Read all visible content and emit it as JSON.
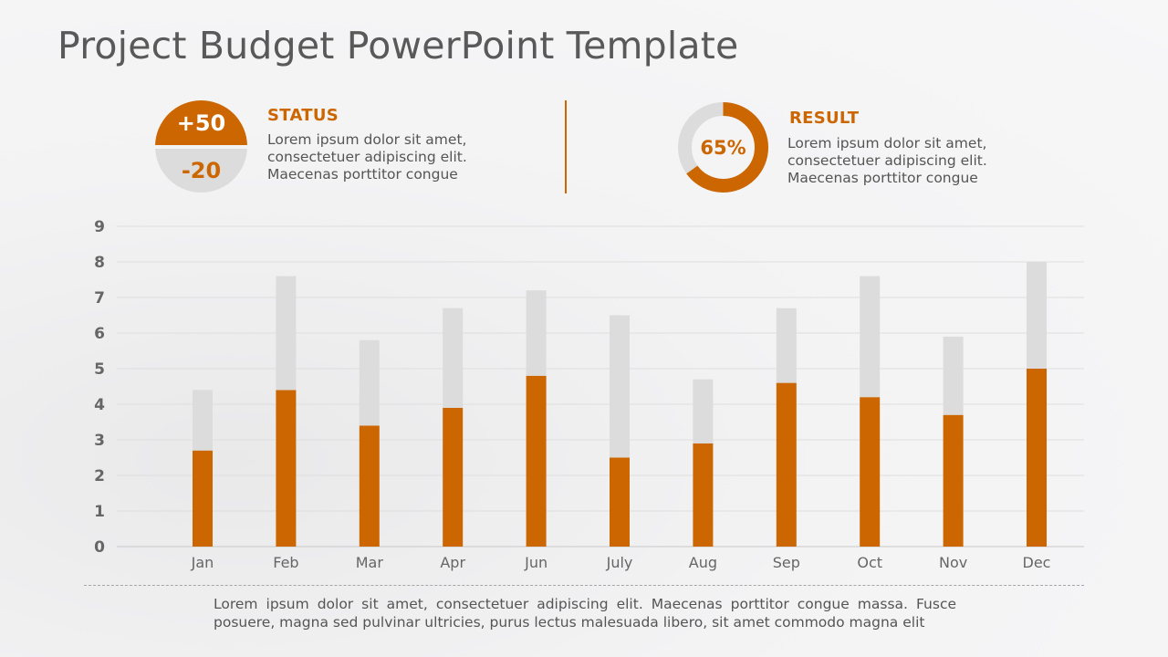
{
  "title": "Project Budget PowerPoint Template",
  "colors": {
    "accent": "#cc6600",
    "secondary": "#dcdcdc",
    "text": "#555555",
    "title": "#595959"
  },
  "status": {
    "heading": "STATUS",
    "plus_value": "+50",
    "minus_value": "-20",
    "description": [
      "Lorem ipsum dolor sit amet,",
      "consectetuer adipiscing elit.",
      "Maecenas porttitor congue"
    ]
  },
  "result": {
    "heading": "RESULT",
    "percent_label": "65%",
    "percent": 0.65,
    "description": [
      "Lorem ipsum dolor sit amet,",
      "consectetuer adipiscing elit.",
      "Maecenas porttitor congue"
    ]
  },
  "chart_data": {
    "type": "bar",
    "stacked": true,
    "categories": [
      "Jan",
      "Feb",
      "Mar",
      "Apr",
      "Jun",
      "July",
      "Aug",
      "Sep",
      "Oct",
      "Nov",
      "Dec"
    ],
    "series": [
      {
        "color": "#cc6600",
        "values": [
          2.7,
          4.4,
          3.4,
          3.9,
          4.8,
          2.5,
          2.9,
          4.6,
          4.2,
          3.7,
          5.0
        ]
      },
      {
        "color": "#dcdcdc",
        "values": [
          1.7,
          3.2,
          2.4,
          2.8,
          2.4,
          4.0,
          1.8,
          2.1,
          3.4,
          2.2,
          3.0
        ]
      }
    ],
    "yticks": [
      0,
      1,
      2,
      3,
      4,
      5,
      6,
      7,
      8,
      9
    ],
    "ylim": [
      0,
      9
    ],
    "grid": true,
    "legend": "none"
  },
  "footer": "Lorem ipsum dolor sit amet, consectetuer adipiscing elit. Maecenas porttitor congue massa. Fusce posuere, magna sed pulvinar ultricies, purus lectus malesuada libero, sit amet commodo magna elit"
}
